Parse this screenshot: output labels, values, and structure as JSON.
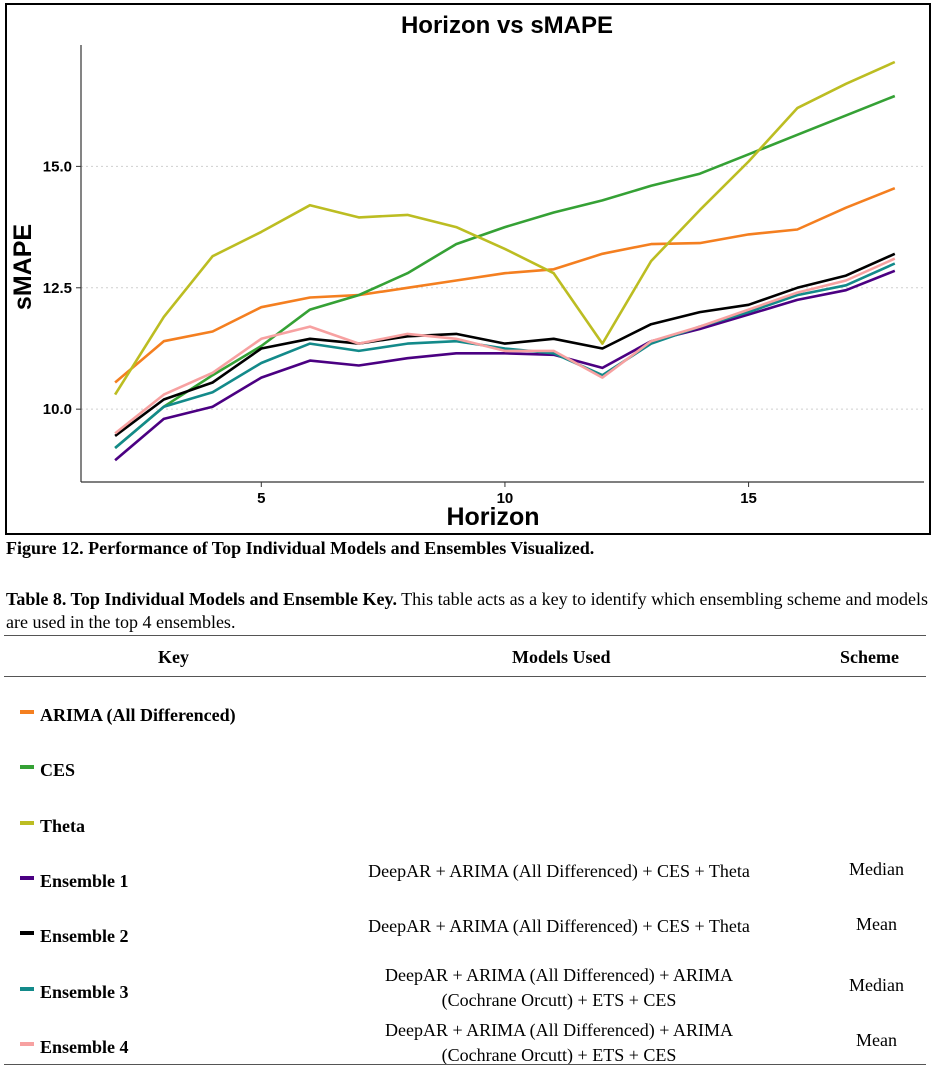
{
  "chart_data": {
    "type": "line",
    "title": "Horizon vs sMAPE",
    "xlabel": "Horizon",
    "ylabel": "sMAPE",
    "xlim": [
      1.3,
      18.6
    ],
    "ylim": [
      8.5,
      17.5
    ],
    "xticks": [
      5,
      10,
      15
    ],
    "yticks": [
      10.0,
      12.5,
      15.0
    ],
    "ytick_labels": [
      "10.0",
      "12.5",
      "15.0"
    ],
    "grid": "horizontal dotted",
    "legend": "none",
    "x": [
      2,
      3,
      4,
      5,
      6,
      7,
      8,
      9,
      10,
      11,
      12,
      13,
      14,
      15,
      16,
      17,
      18
    ],
    "series": [
      {
        "name": "ARIMA (All Differenced)",
        "color": "#f47f20",
        "values": [
          10.55,
          11.4,
          11.6,
          12.1,
          12.3,
          12.35,
          12.5,
          12.65,
          12.8,
          12.88,
          13.2,
          13.4,
          13.42,
          13.6,
          13.7,
          14.15,
          14.55
        ]
      },
      {
        "name": "CES",
        "color": "#35a135",
        "values": [
          9.2,
          10.05,
          10.7,
          11.3,
          12.05,
          12.35,
          12.8,
          13.4,
          13.75,
          14.05,
          14.3,
          14.6,
          14.85,
          15.25,
          15.65,
          16.05,
          16.45
        ]
      },
      {
        "name": "Theta",
        "color": "#bcbd22",
        "values": [
          10.3,
          11.9,
          13.15,
          13.65,
          14.2,
          13.95,
          14.0,
          13.75,
          13.3,
          12.8,
          11.35,
          13.05,
          14.1,
          15.1,
          16.2,
          16.7,
          17.15
        ]
      },
      {
        "name": "Ensemble 1",
        "color": "#4b0082",
        "values": [
          8.95,
          9.8,
          10.05,
          10.65,
          11.0,
          10.9,
          11.05,
          11.15,
          11.15,
          11.12,
          10.85,
          11.4,
          11.65,
          11.95,
          12.25,
          12.45,
          12.85
        ]
      },
      {
        "name": "Ensemble 2",
        "color": "#000000",
        "values": [
          9.45,
          10.2,
          10.55,
          11.25,
          11.45,
          11.35,
          11.5,
          11.55,
          11.35,
          11.45,
          11.25,
          11.75,
          12.0,
          12.15,
          12.5,
          12.75,
          13.2
        ]
      },
      {
        "name": "Ensemble 3",
        "color": "#138a8a",
        "values": [
          9.2,
          10.05,
          10.35,
          10.95,
          11.35,
          11.2,
          11.35,
          11.4,
          11.25,
          11.15,
          10.7,
          11.35,
          11.7,
          12.0,
          12.35,
          12.55,
          13.0
        ]
      },
      {
        "name": "Ensemble 4",
        "color": "#f7a1a1",
        "values": [
          9.5,
          10.3,
          10.75,
          11.45,
          11.7,
          11.35,
          11.55,
          11.45,
          11.2,
          11.2,
          10.65,
          11.4,
          11.7,
          12.05,
          12.4,
          12.65,
          13.1
        ]
      }
    ]
  },
  "figure_caption": "Figure 12. Performance of Top Individual Models and Ensembles Visualized.",
  "table": {
    "caption_bold": "Table 8. Top Individual Models and Ensemble Key.",
    "caption_rest": " This table acts as a key to identify which ensembling scheme and models are used in the top 4 ensembles.",
    "headers": {
      "key": "Key",
      "models": "Models Used",
      "scheme": "Scheme"
    },
    "rows": [
      {
        "key": "ARIMA (All Differenced)",
        "color": "#f47f20",
        "models": [
          "",
          ""
        ],
        "scheme": ""
      },
      {
        "key": "CES",
        "color": "#35a135",
        "models": [
          "",
          ""
        ],
        "scheme": ""
      },
      {
        "key": "Theta",
        "color": "#bcbd22",
        "models": [
          "",
          ""
        ],
        "scheme": ""
      },
      {
        "key": "Ensemble 1",
        "color": "#4b0082",
        "models": [
          "DeepAR + ARIMA (All Differenced) + CES + Theta",
          ""
        ],
        "scheme": "Median"
      },
      {
        "key": "Ensemble 2",
        "color": "#000000",
        "models": [
          "DeepAR + ARIMA (All Differenced) + CES + Theta",
          ""
        ],
        "scheme": "Mean"
      },
      {
        "key": "Ensemble 3",
        "color": "#138a8a",
        "models": [
          "DeepAR + ARIMA (All Differenced) + ARIMA",
          "(Cochrane Orcutt) + ETS + CES"
        ],
        "scheme": "Median"
      },
      {
        "key": "Ensemble 4",
        "color": "#f7a1a1",
        "models": [
          "DeepAR + ARIMA (All Differenced) + ARIMA",
          "(Cochrane Orcutt) + ETS + CES"
        ],
        "scheme": "Mean"
      }
    ]
  }
}
